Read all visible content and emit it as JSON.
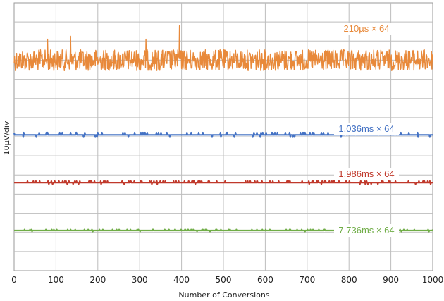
{
  "chart_data": {
    "type": "line",
    "title": "",
    "xlabel": "Number of Conversions",
    "ylabel": "10µV/div",
    "xlim": [
      0,
      1000
    ],
    "x_ticks": [
      "0",
      "100",
      "200",
      "300",
      "400",
      "500",
      "600",
      "700",
      "800",
      "900",
      "1000"
    ],
    "y_divisions": 14,
    "grid": true,
    "series": [
      {
        "name": "210µs × 64",
        "color": "#e8893a",
        "baseline_div": 3.0,
        "noise_amplitude_div": 0.55,
        "spikes": [
          {
            "x": 395,
            "div": 1.2
          },
          {
            "x": 135,
            "div": 1.75
          },
          {
            "x": 80,
            "div": 1.9
          },
          {
            "x": 315,
            "div": 1.9
          }
        ]
      },
      {
        "name": "1.036ms × 64",
        "color": "#4472c4",
        "baseline_div": 6.9,
        "noise_amplitude_div": 0.12,
        "spikes": []
      },
      {
        "name": "1.986ms × 64",
        "color": "#c0392b",
        "baseline_div": 9.4,
        "noise_amplitude_div": 0.08,
        "spikes": []
      },
      {
        "name": "7.736ms × 64",
        "color": "#70ad47",
        "baseline_div": 11.9,
        "noise_amplitude_div": 0.05,
        "spikes": []
      }
    ]
  }
}
